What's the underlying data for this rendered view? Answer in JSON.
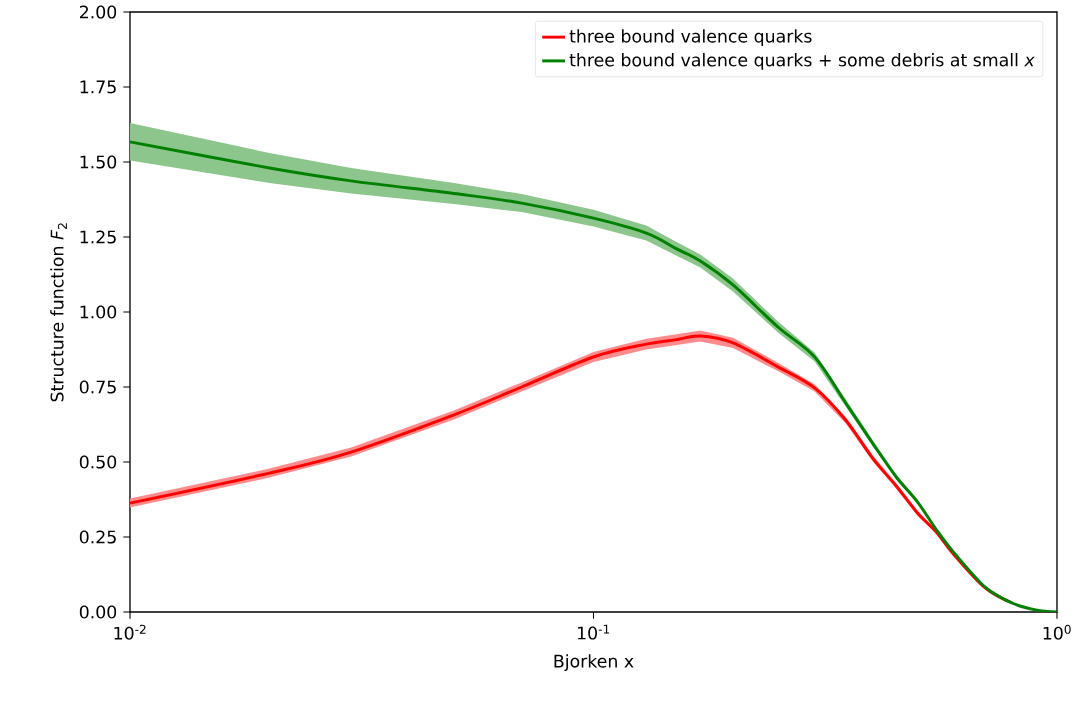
{
  "chart_data": {
    "type": "line",
    "xlabel": "Bjorken x",
    "ylabel": "Structure function *F*$_{2}$",
    "log": "x",
    "x": [
      0.01,
      0.02,
      0.03,
      0.05,
      0.07,
      0.1,
      0.13,
      0.15,
      0.17,
      0.2,
      0.25,
      0.3,
      0.35,
      0.4,
      0.45,
      0.5,
      0.55,
      0.6,
      0.7,
      0.8,
      0.9,
      1.0
    ],
    "series": [
      {
        "name": "three bound valence quarks",
        "color": "#ff0000",
        "values": [
          0.363,
          0.463,
          0.533,
          0.657,
          0.75,
          0.85,
          0.893,
          0.907,
          0.92,
          0.897,
          0.817,
          0.747,
          0.64,
          0.513,
          0.42,
          0.33,
          0.265,
          0.19,
          0.08,
          0.03,
          null,
          null
        ],
        "lower": [
          0.348,
          0.448,
          0.518,
          0.642,
          0.735,
          0.833,
          0.875,
          0.889,
          0.902,
          0.88,
          0.803,
          0.735,
          0.629,
          0.503,
          0.411,
          0.322,
          0.259,
          0.185,
          0.077,
          0.028,
          0.006,
          0.0
        ],
        "upper": [
          0.378,
          0.478,
          0.548,
          0.672,
          0.765,
          0.867,
          0.911,
          0.925,
          0.938,
          0.914,
          0.831,
          0.759,
          0.651,
          0.523,
          0.429,
          0.338,
          0.271,
          0.195,
          0.083,
          0.032,
          0.008,
          0.0
        ]
      },
      {
        "name": "three bound valence quarks + some debris at small *x*",
        "color": "#008000",
        "values": [
          1.567,
          1.48,
          1.437,
          1.395,
          1.363,
          1.313,
          1.263,
          1.213,
          1.17,
          1.09,
          0.95,
          0.85,
          0.697,
          0.563,
          0.45,
          0.367,
          0.273,
          0.197,
          0.083,
          0.03,
          0.007,
          0.0
        ],
        "lower": [
          1.505,
          1.43,
          1.395,
          1.36,
          1.333,
          1.285,
          1.238,
          1.19,
          1.148,
          1.068,
          0.932,
          0.835,
          0.685,
          0.553,
          0.442,
          0.36,
          0.267,
          0.192,
          0.08,
          0.028,
          0.006,
          0.0
        ],
        "upper": [
          1.63,
          1.53,
          1.48,
          1.43,
          1.393,
          1.341,
          1.288,
          1.236,
          1.192,
          1.112,
          0.968,
          0.865,
          0.709,
          0.573,
          0.458,
          0.374,
          0.279,
          0.202,
          0.086,
          0.032,
          0.008,
          0.0
        ]
      }
    ],
    "xlim": [
      0.01,
      1.0
    ],
    "ylim": [
      0.0,
      2.0
    ],
    "xticks": [
      {
        "value": 0.01,
        "label": "10$^{-2}$"
      },
      {
        "value": 0.1,
        "label": "10$^{-1}$"
      },
      {
        "value": 1.0,
        "label": "10$^{0}$"
      }
    ],
    "yticks": [
      {
        "value": 0.0,
        "label": "0.00"
      },
      {
        "value": 0.25,
        "label": "0.25"
      },
      {
        "value": 0.5,
        "label": "0.50"
      },
      {
        "value": 0.75,
        "label": "0.75"
      },
      {
        "value": 1.0,
        "label": "1.00"
      },
      {
        "value": 1.25,
        "label": "1.25"
      },
      {
        "value": 1.5,
        "label": "1.50"
      },
      {
        "value": 1.75,
        "label": "1.75"
      },
      {
        "value": 2.0,
        "label": "2.00"
      }
    ],
    "legend": "top right",
    "marker": "none",
    "line_style": "solid"
  }
}
